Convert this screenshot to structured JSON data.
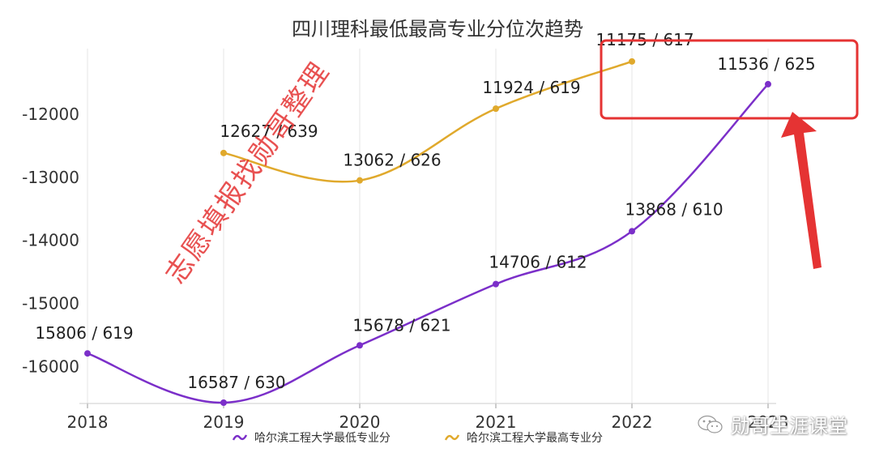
{
  "chart_data": {
    "type": "line",
    "title": "四川理科最低最高专业分位次趋势",
    "categories": [
      "2018",
      "2019",
      "2020",
      "2021",
      "2022",
      "2023"
    ],
    "y_ticks": [
      -12000,
      -13000,
      -14000,
      -15000,
      -16000
    ],
    "ylim": [
      -16600,
      -11100
    ],
    "grid": "vertical",
    "legend_position": "bottom-center",
    "series": [
      {
        "name": "哈尔滨工程大学最低专业分",
        "color": "#7b2fc9",
        "values": [
          -15806,
          -16587,
          -15678,
          -14706,
          -13868,
          -11536
        ],
        "labels": [
          "15806 / 619",
          "16587 / 630",
          "15678 / 621",
          "14706 / 612",
          "13868 / 610",
          "11536 / 625"
        ]
      },
      {
        "name": "哈尔滨工程大学最高专业分",
        "color": "#e0a92c",
        "values": [
          null,
          -12627,
          -13062,
          -11924,
          -11175,
          null
        ],
        "labels": [
          null,
          "12627 / 639",
          "13062 / 626",
          "11924 / 619",
          "11175 / 617",
          null
        ]
      }
    ],
    "annotations": {
      "highlight_color": "#e53333"
    }
  },
  "watermark": "志愿填报找勋哥整理",
  "brand": {
    "label": "勋哥生涯课堂",
    "icon": "wechat-icon"
  }
}
